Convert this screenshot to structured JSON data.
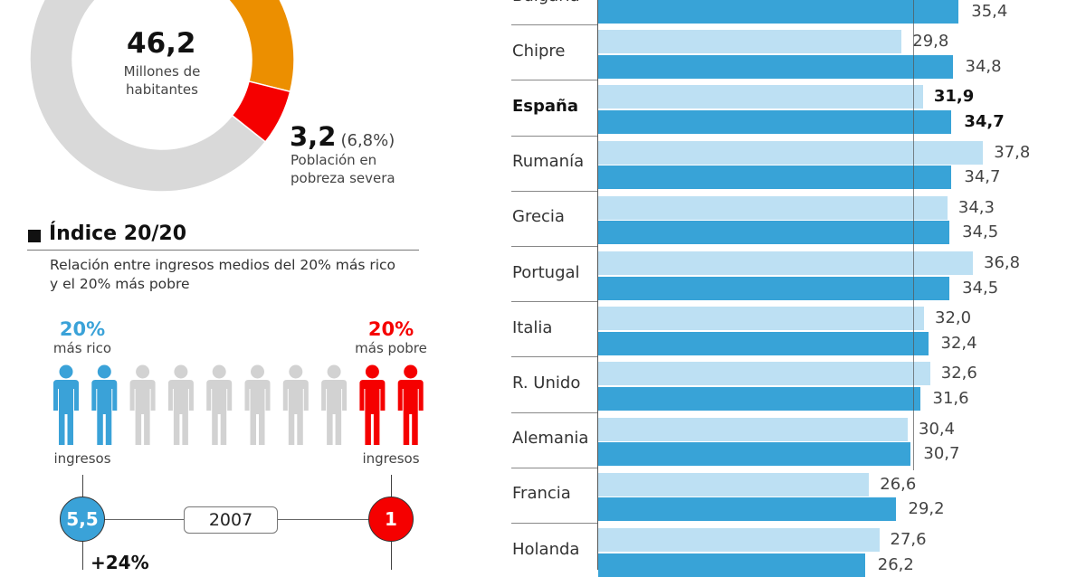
{
  "population": {
    "total_value": "46,2",
    "total_label_1": "Millones de",
    "total_label_2": "habitantes",
    "severe_value": "3,2",
    "severe_pct": "(6,8%)",
    "severe_label_1": "Población en",
    "severe_label_2": "pobreza severa",
    "severe_share_pct": 6.8,
    "colors": {
      "rest": "#d9d9d9",
      "orange": "#ec8f00",
      "severe": "#f50000"
    }
  },
  "index2020": {
    "title": "Índice 20/20",
    "subtitle_1": "Relación entre ingresos medios del 20% más rico",
    "subtitle_2": "y el 20% más pobre",
    "rich_pct": "20%",
    "rich_label": "más rico",
    "poor_pct": "20%",
    "poor_label": "más pobre",
    "income_label": "ingresos",
    "figures": [
      "rich",
      "rich",
      "mid",
      "mid",
      "mid",
      "mid",
      "mid",
      "mid",
      "poor",
      "poor"
    ],
    "rich_value": "5,5",
    "poor_value": "1",
    "year": "2007",
    "change": "+24%",
    "colors": {
      "rich": "#3aa2d8",
      "mid": "#d2d2d2",
      "poor": "#f50000"
    }
  },
  "chart_data": {
    "type": "bar",
    "orientation": "horizontal",
    "categories": [
      "Bulgaria",
      "Chipre",
      "España",
      "Rumanía",
      "Grecia",
      "Portugal",
      "Italia",
      "R. Unido",
      "Alemania",
      "Francia",
      "Holanda"
    ],
    "highlight": "España",
    "series": [
      {
        "color": "#bde0f3",
        "values": [
          null,
          29.8,
          31.9,
          37.8,
          34.3,
          36.8,
          32.0,
          32.6,
          30.4,
          26.6,
          27.6
        ],
        "labels": [
          "",
          "29,8",
          "31,9",
          "37,8",
          "34,3",
          "36,8",
          "32,0",
          "32,6",
          "30,4",
          "26,6",
          "27,6"
        ]
      },
      {
        "color": "#38a3d7",
        "values": [
          35.4,
          34.8,
          34.7,
          34.7,
          34.5,
          34.5,
          32.4,
          31.6,
          30.7,
          29.2,
          26.2
        ],
        "labels": [
          "35,4",
          "34,8",
          "34,7",
          "34,7",
          "34,5",
          "34,5",
          "32,4",
          "31,6",
          "30,7",
          "29,2",
          "26,2"
        ]
      }
    ],
    "reference_line": 30.9,
    "grid": false
  }
}
